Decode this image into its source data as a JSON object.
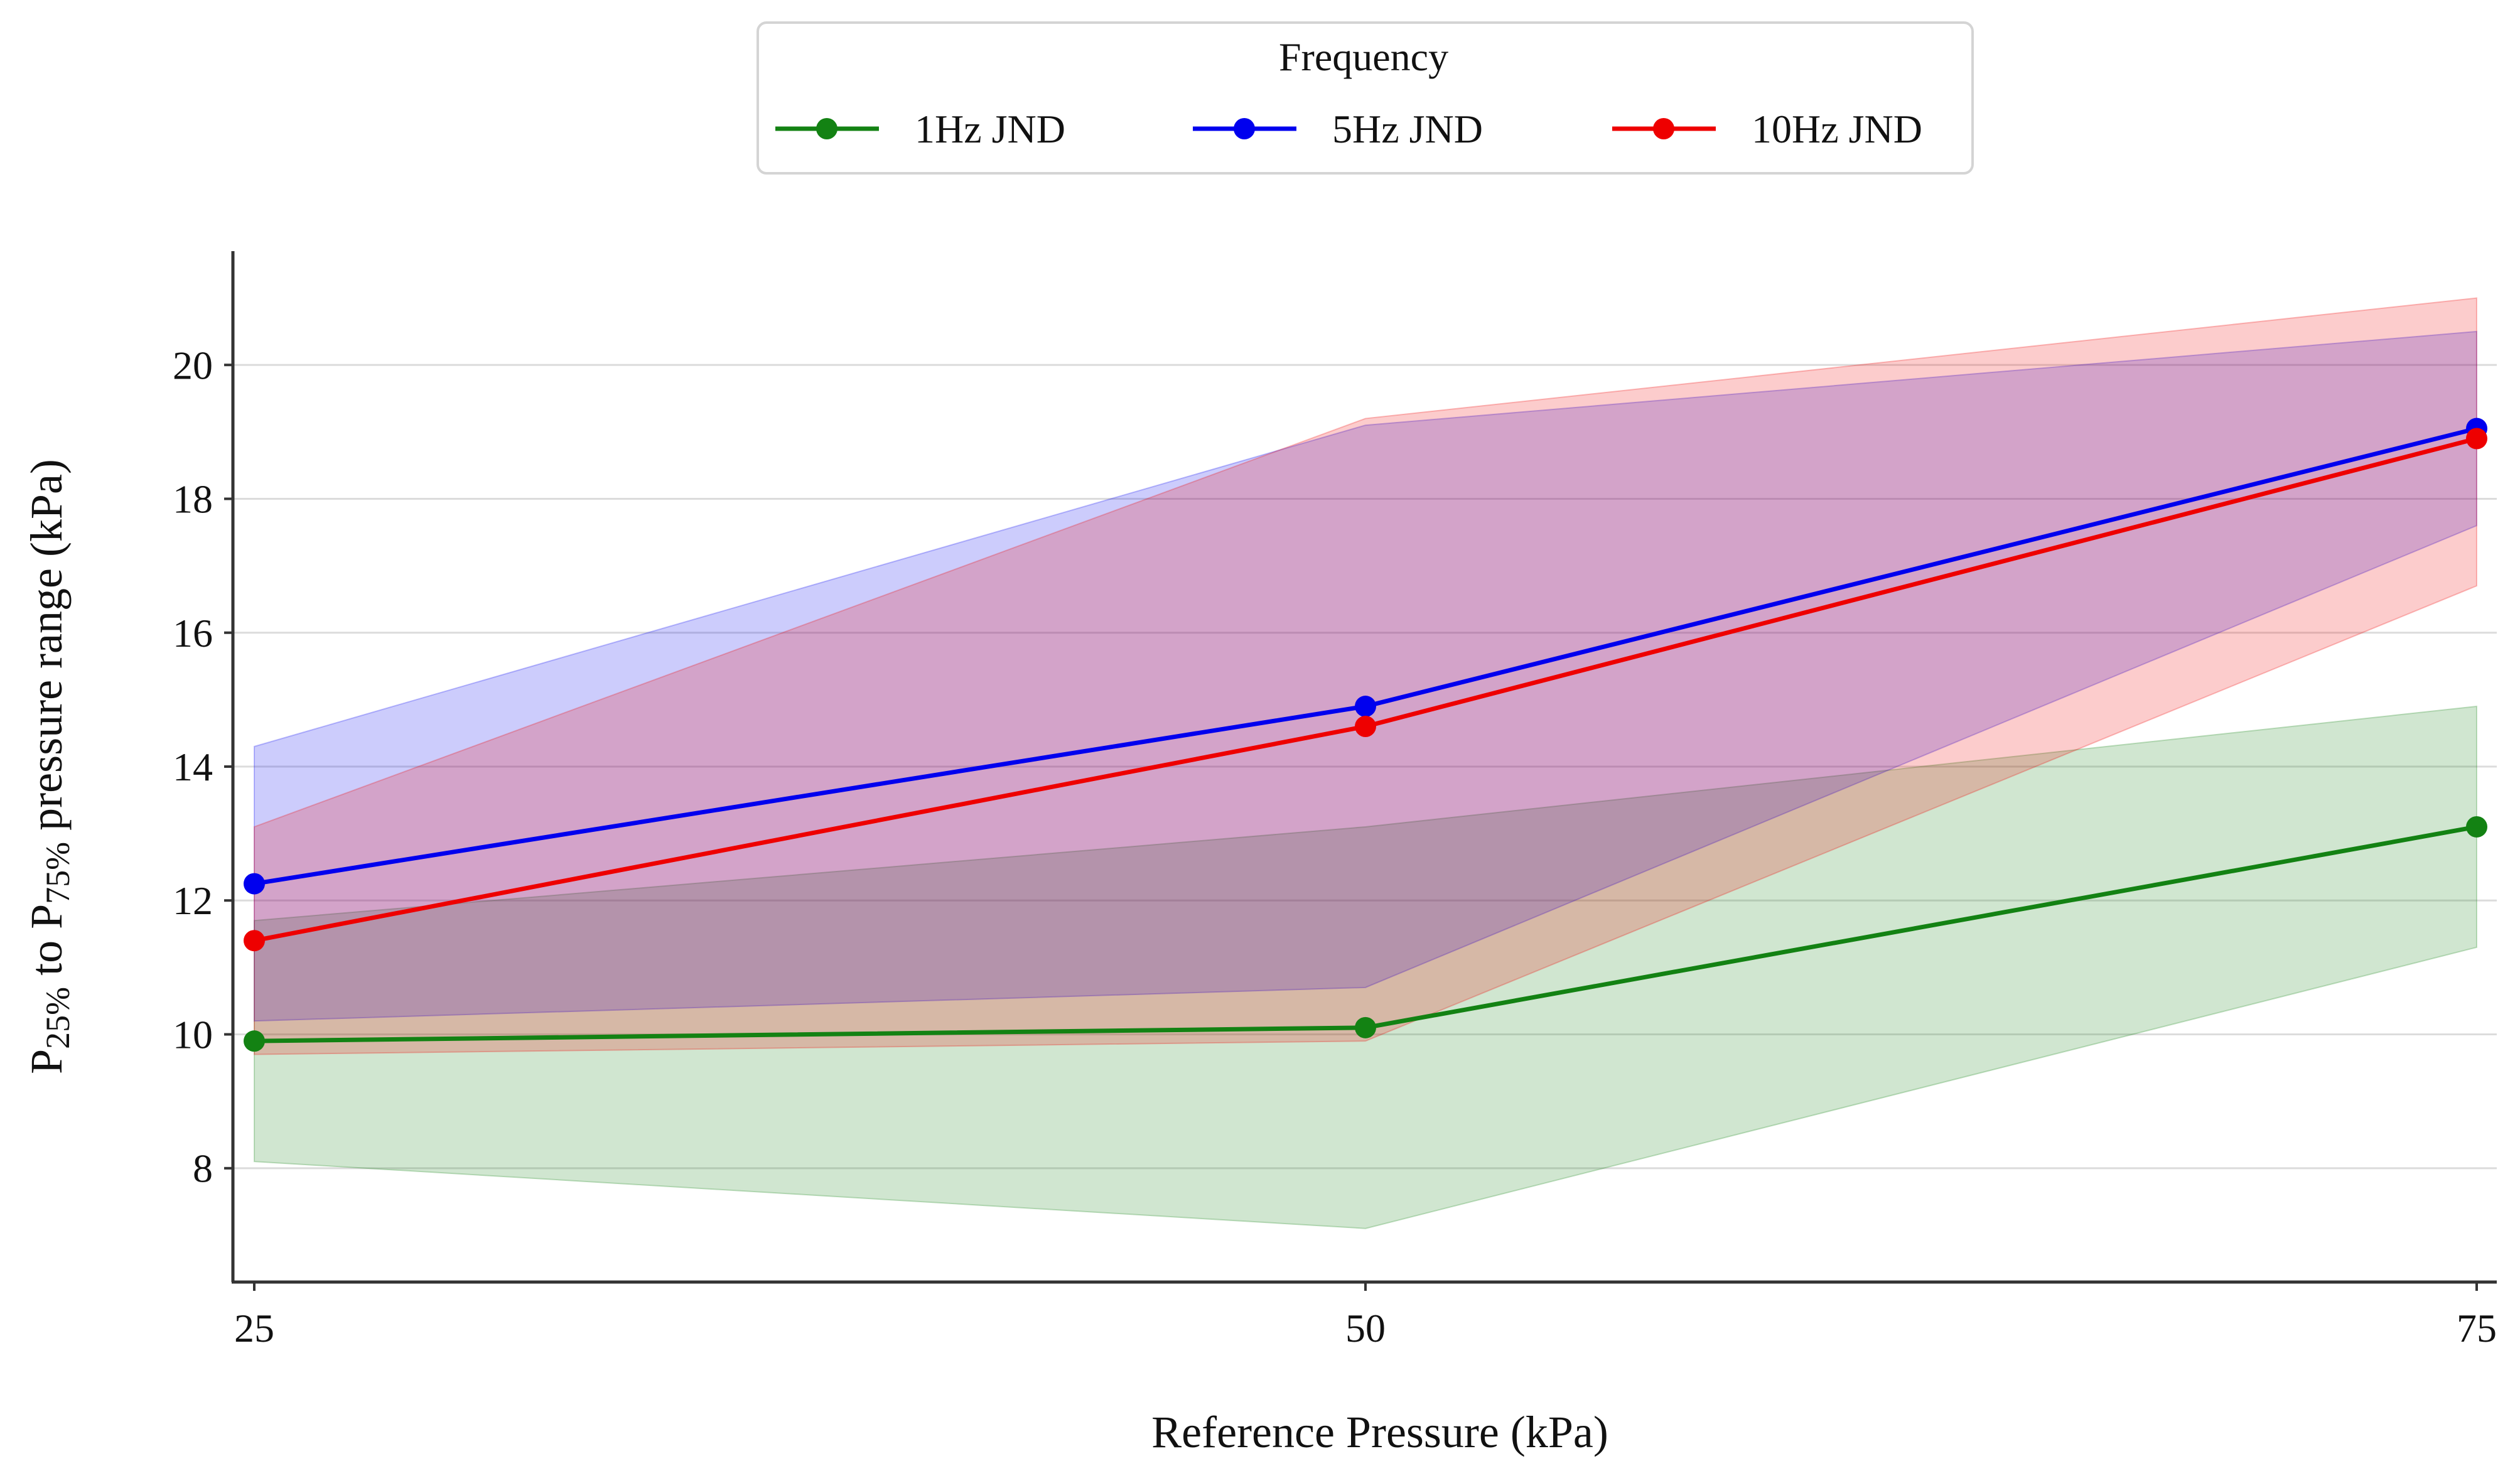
{
  "chart_data": {
    "type": "line",
    "title": "",
    "xlabel": "Reference Pressure (kPa)",
    "ylabel": {
      "prefix": "P",
      "sub1": "25%",
      "middle": " to P",
      "sub2": "75%",
      "suffix": " pressure range (kPa)"
    },
    "x": [
      25,
      50,
      75
    ],
    "x_ticks": [
      "25",
      "50",
      "75"
    ],
    "y_ticks": [
      "8",
      "10",
      "12",
      "14",
      "16",
      "18",
      "20"
    ],
    "y_tick_values": [
      8,
      10,
      12,
      14,
      16,
      18,
      20
    ],
    "xlim": [
      24.5,
      75.5
    ],
    "ylim": [
      6.3,
      21.7
    ],
    "grid": "horizontal",
    "legend": {
      "title": "Frequency",
      "placement": "top-center"
    },
    "series": [
      {
        "name": "1Hz JND",
        "color": "#138213",
        "values": [
          9.9,
          10.1,
          13.1
        ],
        "band_low": [
          8.1,
          7.1,
          11.3
        ],
        "band_high": [
          11.7,
          13.1,
          14.9
        ]
      },
      {
        "name": "5Hz JND",
        "color": "#0000ee",
        "values": [
          12.25,
          14.9,
          19.05
        ],
        "band_low": [
          10.2,
          10.7,
          17.6
        ],
        "band_high": [
          14.3,
          19.1,
          20.5
        ]
      },
      {
        "name": "10Hz JND",
        "color": "#ee0000",
        "values": [
          11.4,
          14.6,
          18.9
        ],
        "band_low": [
          9.7,
          9.9,
          16.7
        ],
        "band_high": [
          13.1,
          19.2,
          21.0
        ]
      }
    ]
  }
}
